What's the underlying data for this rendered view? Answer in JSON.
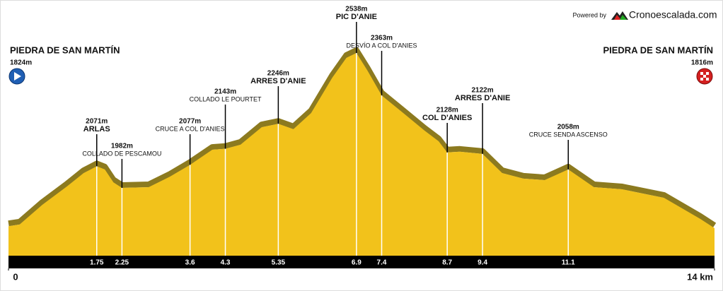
{
  "header": {
    "powered_by": "Powered by",
    "brand": "Cronoescalada.com"
  },
  "start": {
    "name": "PIEDRA DE SAN MARTÍN",
    "elevation": "1824m"
  },
  "finish": {
    "name": "PIEDRA DE SAN MARTÍN",
    "elevation": "1816m"
  },
  "chart_data": {
    "type": "area",
    "color": "#f2c21b",
    "edge_color": "#8c7a1f",
    "x": [
      0,
      0.22,
      0.67,
      1.16,
      1.49,
      1.75,
      1.91,
      2.08,
      2.25,
      2.78,
      3.2,
      3.6,
      4.04,
      4.3,
      4.6,
      5.02,
      5.35,
      5.65,
      6.0,
      6.42,
      6.7,
      6.9,
      7.12,
      7.4,
      7.83,
      8.25,
      8.53,
      8.7,
      8.95,
      9.4,
      9.79,
      10.21,
      10.63,
      11.1,
      11.61,
      12.17,
      13.0,
      13.72,
      14
    ],
    "values": [
      1824,
      1831,
      1912,
      1988,
      2043,
      2071,
      2058,
      2005,
      1982,
      1985,
      2028,
      2077,
      2139,
      2143,
      2160,
      2232,
      2246,
      2224,
      2290,
      2436,
      2518,
      2538,
      2465,
      2363,
      2290,
      2218,
      2174,
      2128,
      2131,
      2122,
      2043,
      2020,
      2014,
      2058,
      1985,
      1976,
      1941,
      1854,
      1816
    ],
    "xlim": [
      0,
      14
    ],
    "xticks": [
      0,
      {
        "value": 14,
        "label": "14 km"
      }
    ],
    "waypoints": [
      {
        "name": "ARLAS",
        "distance": 1.75,
        "elevation": 2071,
        "label": "2071m",
        "major": true
      },
      {
        "name": "COLLADO DE PESCAMOU",
        "distance": 2.25,
        "elevation": 1982,
        "label": "1982m",
        "major": false
      },
      {
        "name": "CRUCE A COL D'ANIES",
        "distance": 3.6,
        "elevation": 2077,
        "label": "2077m",
        "major": false
      },
      {
        "name": "COLLADO LE POURTET",
        "distance": 4.3,
        "elevation": 2143,
        "label": "2143m",
        "major": false
      },
      {
        "name": "ARRES D'ANIE",
        "distance": 5.35,
        "elevation": 2246,
        "label": "2246m",
        "major": true
      },
      {
        "name": "PIC D'ANIE",
        "distance": 6.9,
        "elevation": 2538,
        "label": "2538m",
        "major": true
      },
      {
        "name": "DESVÍO A COL D'ANIES",
        "distance": 7.4,
        "elevation": 2363,
        "label": "2363m",
        "major": false
      },
      {
        "name": "COL D'ANIES",
        "distance": 8.7,
        "elevation": 2128,
        "label": "2128m",
        "major": true
      },
      {
        "name": "ARRES D'ANIE",
        "distance": 9.4,
        "elevation": 2122,
        "label": "2122m",
        "major": true
      },
      {
        "name": "CRUCE SENDA ASCENSO",
        "distance": 11.1,
        "elevation": 2058,
        "label": "2058m",
        "major": false
      }
    ]
  }
}
